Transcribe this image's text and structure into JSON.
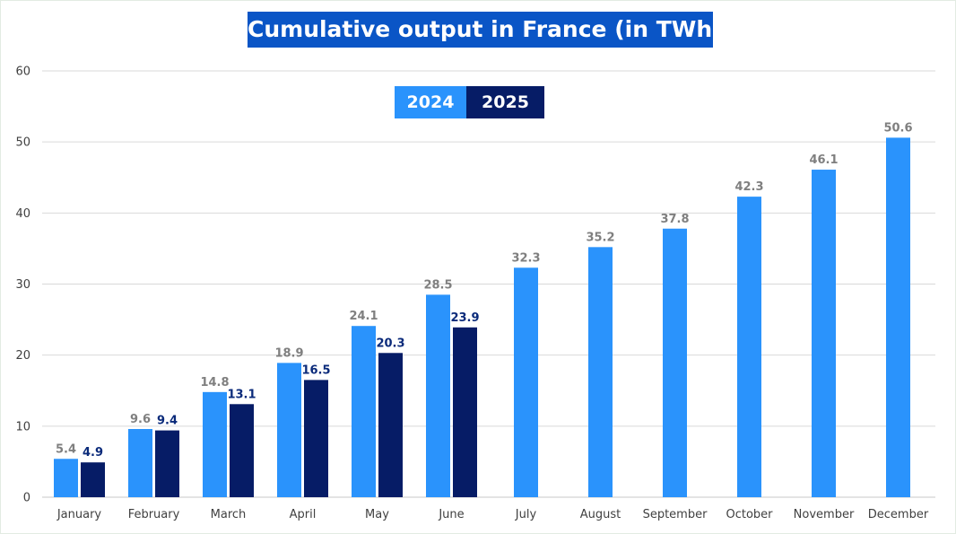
{
  "chart_data": {
    "type": "bar",
    "title": "Cumulative output in France (in TWh)",
    "xlabel": "",
    "ylabel": "",
    "ylim": [
      0,
      60
    ],
    "yticks": [
      0,
      10,
      20,
      30,
      40,
      50,
      60
    ],
    "grid": true,
    "legend_position": "top-center",
    "categories": [
      "January",
      "February",
      "March",
      "April",
      "May",
      "June",
      "July",
      "August",
      "September",
      "October",
      "November",
      "December"
    ],
    "series": [
      {
        "name": "2024",
        "color": "#2a93fc",
        "label_color": "#7f7f7f",
        "values": [
          5.4,
          9.6,
          14.8,
          18.9,
          24.1,
          28.5,
          32.3,
          35.2,
          37.8,
          42.3,
          46.1,
          50.6
        ]
      },
      {
        "name": "2025",
        "color": "#061c66",
        "label_color": "#0a2a7a",
        "values": [
          4.9,
          9.4,
          13.1,
          16.5,
          20.3,
          23.9,
          null,
          null,
          null,
          null,
          null,
          null
        ]
      }
    ]
  }
}
